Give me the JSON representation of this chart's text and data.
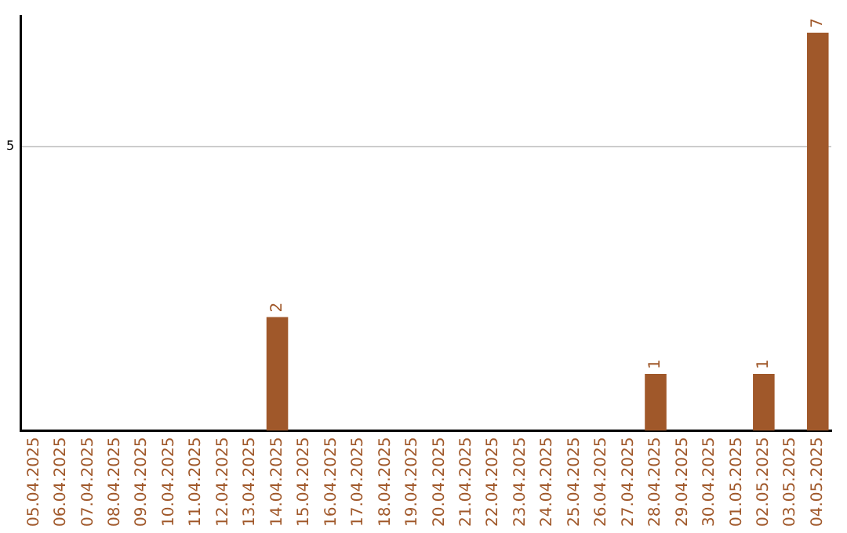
{
  "chart_data": {
    "type": "bar",
    "categories": [
      "05.04.2025",
      "06.04.2025",
      "07.04.2025",
      "08.04.2025",
      "09.04.2025",
      "10.04.2025",
      "11.04.2025",
      "12.04.2025",
      "13.04.2025",
      "14.04.2025",
      "15.04.2025",
      "16.04.2025",
      "17.04.2025",
      "18.04.2025",
      "19.04.2025",
      "20.04.2025",
      "21.04.2025",
      "22.04.2025",
      "23.04.2025",
      "24.04.2025",
      "25.04.2025",
      "26.04.2025",
      "27.04.2025",
      "28.04.2025",
      "29.04.2025",
      "30.04.2025",
      "01.05.2025",
      "02.05.2025",
      "03.05.2025",
      "04.05.2025"
    ],
    "values": [
      0,
      0,
      0,
      0,
      0,
      0,
      0,
      0,
      0,
      2,
      0,
      0,
      0,
      0,
      0,
      0,
      0,
      0,
      0,
      0,
      0,
      0,
      0,
      1,
      0,
      0,
      0,
      1,
      0,
      7
    ],
    "value_labels": [
      null,
      null,
      null,
      null,
      null,
      null,
      null,
      null,
      null,
      "2",
      null,
      null,
      null,
      null,
      null,
      null,
      null,
      null,
      null,
      null,
      null,
      null,
      null,
      "1",
      null,
      null,
      null,
      "1",
      null,
      "7"
    ],
    "color": "#a0582a",
    "ylim": [
      0,
      7.3
    ],
    "yticks": [
      5
    ],
    "grid": "y",
    "legend": false
  }
}
